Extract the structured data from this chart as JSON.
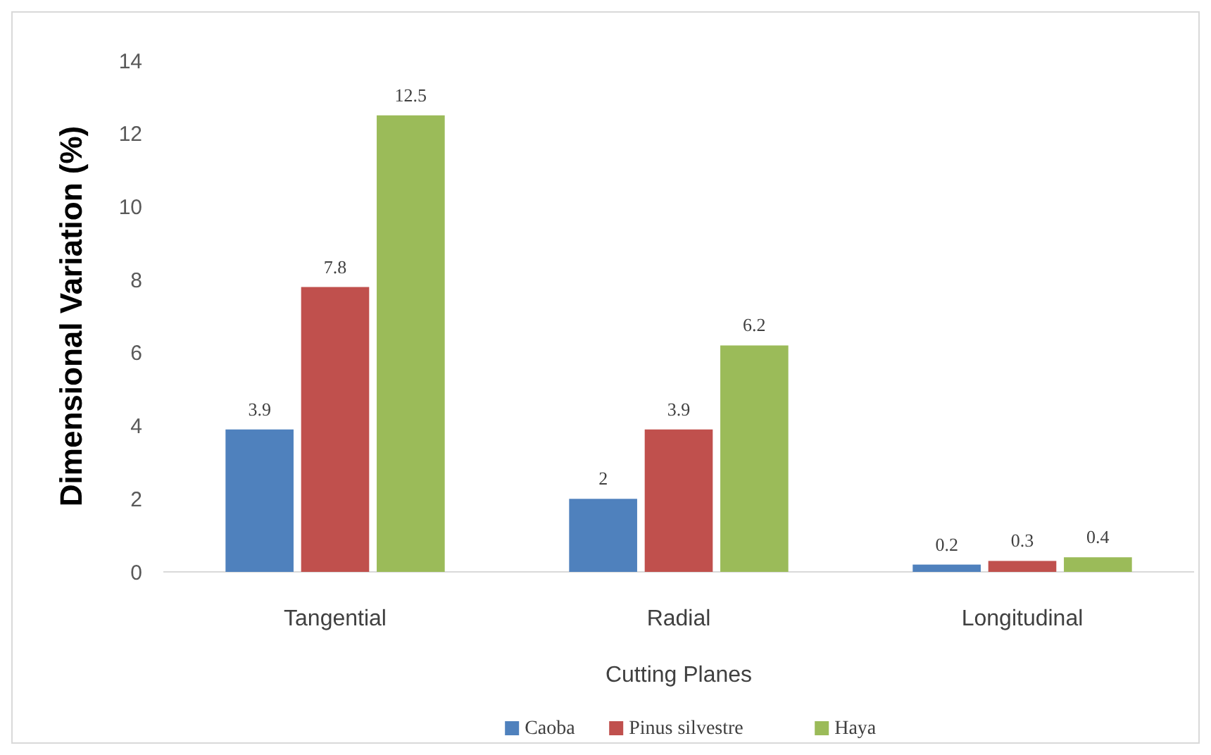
{
  "chart_data": {
    "type": "bar",
    "xlabel": "Cutting Planes",
    "ylabel": "Dimensional Variation (%)",
    "categories": [
      "Tangential",
      "Radial",
      "Longitudinal"
    ],
    "series": [
      {
        "name": "Caoba",
        "color": "#4f81bd",
        "values": [
          3.9,
          2,
          0.2
        ]
      },
      {
        "name": "Pinus silvestre",
        "color": "#c0504d",
        "values": [
          7.8,
          3.9,
          0.3
        ]
      },
      {
        "name": "Haya",
        "color": "#9bbb59",
        "values": [
          12.5,
          6.2,
          0.4
        ]
      }
    ],
    "ylim": [
      0,
      14
    ],
    "yticks": [
      0,
      2,
      4,
      6,
      8,
      10,
      12,
      14
    ],
    "grid": false,
    "legend": "bottom",
    "data_labels": true
  }
}
